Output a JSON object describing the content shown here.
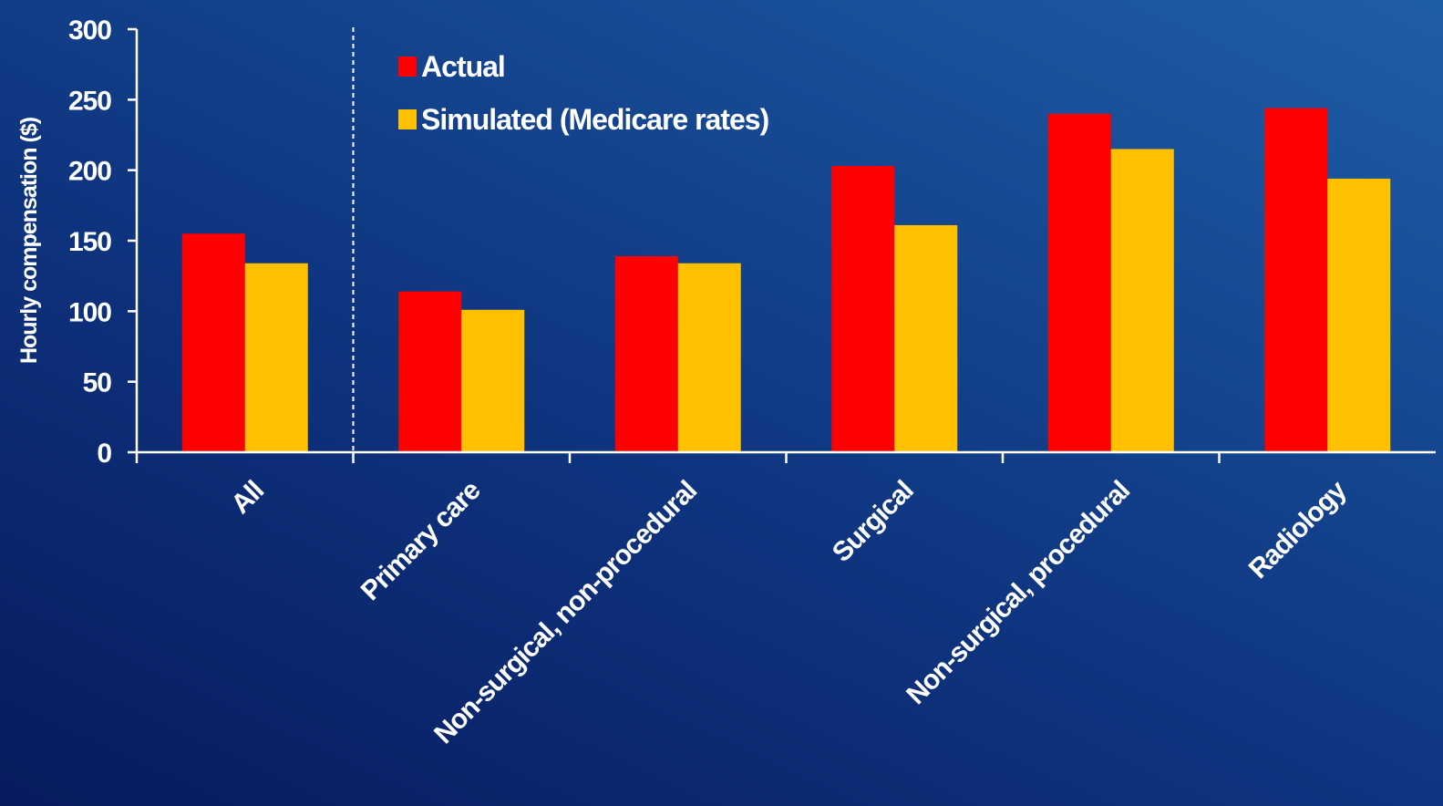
{
  "chart_data": {
    "type": "bar",
    "title": "",
    "xlabel": "",
    "ylabel": "Hourly compensation ($)",
    "ylim": [
      0,
      300
    ],
    "yticks": [
      0,
      50,
      100,
      150,
      200,
      250,
      300
    ],
    "categories": [
      "All",
      "Primary care",
      "Non-surgical, non-procedural",
      "Surgical",
      "Non-surgical, procedural",
      "Radiology"
    ],
    "series": [
      {
        "name": "Actual",
        "color": "#ff0000",
        "values": [
          155,
          114,
          139,
          203,
          240,
          244
        ]
      },
      {
        "name": "Simulated (Medicare rates)",
        "color": "#ffc000",
        "values": [
          134,
          101,
          134,
          161,
          215,
          194
        ]
      }
    ],
    "grid": false,
    "legend_position": "top-left",
    "divider_after_category": "All"
  }
}
